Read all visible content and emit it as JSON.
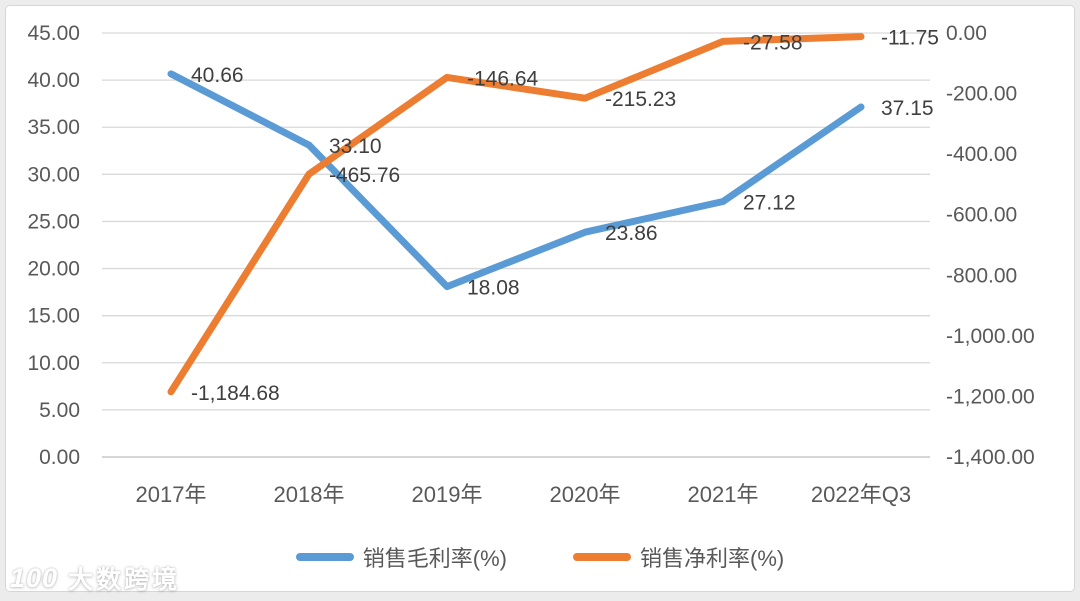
{
  "chart_data": {
    "type": "line",
    "title": "",
    "categories": [
      "2017年",
      "2018年",
      "2019年",
      "2020年",
      "2021年",
      "2022年Q3"
    ],
    "series": [
      {
        "name": "销售毛利率(%)",
        "color": "#5B9BD5",
        "axis": "left",
        "values": [
          40.66,
          33.1,
          18.08,
          23.86,
          27.12,
          37.15
        ],
        "labels": [
          "40.66",
          "33.10",
          "18.08",
          "23.86",
          "27.12",
          "37.15"
        ]
      },
      {
        "name": "销售净利率(%)",
        "color": "#ED7D31",
        "axis": "right",
        "values": [
          -1184.68,
          -465.76,
          -146.64,
          -215.23,
          -27.58,
          -11.75
        ],
        "labels": [
          "-1,184.68",
          "-465.76",
          "-146.64",
          "-215.23",
          "-27.58",
          "-11.75"
        ]
      }
    ],
    "axes": {
      "left": {
        "range": [
          0,
          45
        ],
        "tick_labels": [
          "45.00",
          "40.00",
          "35.00",
          "30.00",
          "25.00",
          "20.00",
          "15.00",
          "10.00",
          "5.00",
          "0.00"
        ]
      },
      "right": {
        "range": [
          -1400,
          0
        ],
        "tick_labels": [
          "0.00",
          "-200.00",
          "-400.00",
          "-600.00",
          "-800.00",
          "-1,000.00",
          "-1,200.00",
          "-1,400.00"
        ]
      }
    },
    "grid": true,
    "legend_position": "bottom"
  },
  "colors": {
    "gridline": "#D9D9D9",
    "axis_line": "#BFBFBF",
    "tick_text": "#595959",
    "label_text": "#3F3F3F"
  },
  "watermark": {
    "logo": "100",
    "text": "大数跨境"
  }
}
